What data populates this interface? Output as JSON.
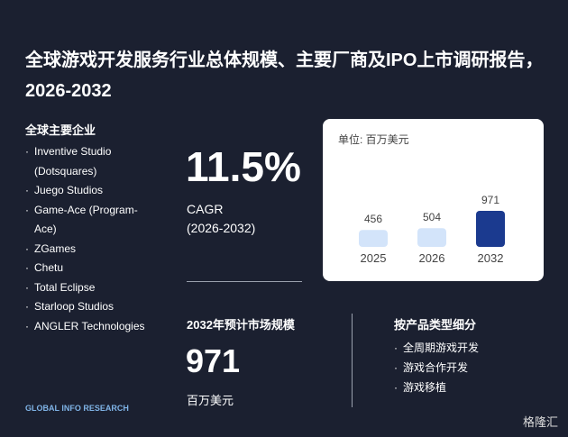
{
  "header": {
    "title": "全球游戏开发服务行业总体规模、主要厂商及IPO上市调研报告，2026-2032"
  },
  "companies": {
    "heading": "全球主要企业",
    "items": [
      "Inventive Studio (Dotsquares)",
      "Juego Studios",
      "Game-Ace (Program-Ace)",
      "ZGames",
      "Chetu",
      "Total Eclipse",
      "Starloop Studios",
      "ANGLER Technologies"
    ]
  },
  "cagr": {
    "value": "11.5%",
    "label": "CAGR",
    "period": "(2026-2032)"
  },
  "market": {
    "heading": "2032年预计市场规模",
    "value": "971",
    "unit": "百万美元"
  },
  "segments": {
    "heading": "按产品类型细分",
    "items": [
      "全周期游戏开发",
      "游戏合作开发",
      "游戏移植"
    ]
  },
  "mini_chart": {
    "type": "bar",
    "unit": "单位: 百万美元",
    "categories": [
      "2025",
      "2026",
      "2032"
    ],
    "values": [
      456,
      504,
      971
    ],
    "colors": [
      "#d3e4fa",
      "#d3e4fa",
      "#1b3a8f"
    ]
  },
  "logo": "GLOBAL INFO RESEARCH",
  "watermark": "格隆汇"
}
